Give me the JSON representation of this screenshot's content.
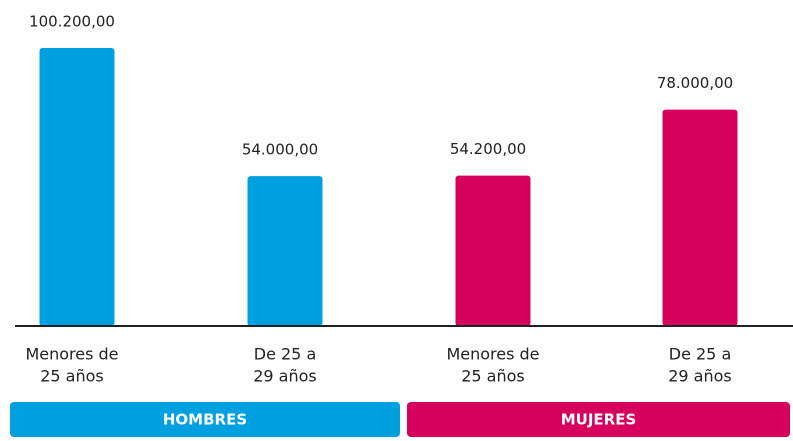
{
  "chart_data": {
    "type": "bar",
    "categories": [
      [
        "Menores de",
        "25 años"
      ],
      [
        "De 25 a",
        "29 años"
      ],
      [
        "Menores de",
        "25 años"
      ],
      [
        "De 25 a",
        "29 años"
      ]
    ],
    "values": [
      100200,
      54000,
      54200,
      78000
    ],
    "value_labels": [
      "100.200,00",
      "54.000,00",
      "54.200,00",
      "78.000,00"
    ],
    "colors": [
      "#009fe0",
      "#009fe0",
      "#d6005c",
      "#d6005c"
    ],
    "groups": [
      {
        "label": "HOMBRES",
        "color": "#009fe0"
      },
      {
        "label": "MUJERES",
        "color": "#d6005c"
      }
    ]
  }
}
